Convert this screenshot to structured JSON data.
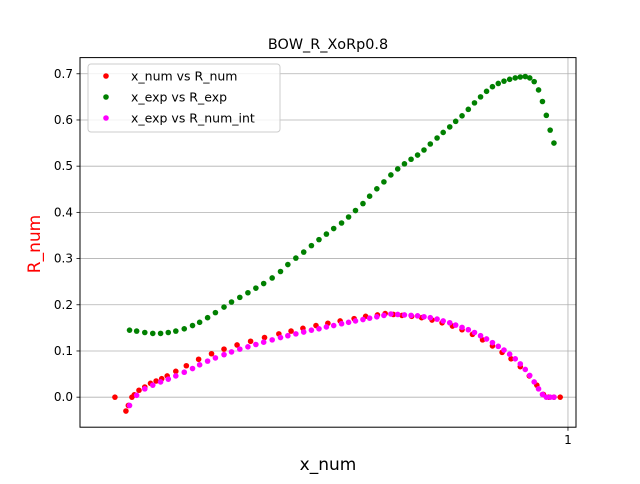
{
  "chart_data": {
    "type": "scatter",
    "title": "BOW_R_XoRp0.8",
    "xlabel": "x_num",
    "ylabel": "R_num",
    "x_scale": "log",
    "xlim": [
      0.3,
      1.02
    ],
    "ylim": [
      -0.065,
      0.735
    ],
    "x_ticks": [
      1
    ],
    "x_tick_labels": [
      "1"
    ],
    "y_ticks": [
      0.0,
      0.1,
      0.2,
      0.3,
      0.4,
      0.5,
      0.6,
      0.7
    ],
    "y_tick_labels": [
      "0.0",
      "0.1",
      "0.2",
      "0.3",
      "0.4",
      "0.5",
      "0.6",
      "0.7"
    ],
    "grid": "horizontal",
    "legend_position": "upper left",
    "colors": {
      "x_num vs R_num": "#ff0000",
      "x_exp vs R_exp": "#008000",
      "x_exp vs R_num_int": "#ff00ff",
      "ylabel": "#ff0000",
      "grid": "#b0b0b0"
    },
    "series": [
      {
        "name": "x_num vs R_num",
        "color": "#ff0000",
        "points": [
          [
            0.327,
            0.0
          ],
          [
            0.336,
            -0.03
          ],
          [
            0.338,
            -0.018
          ],
          [
            0.341,
            0.0
          ],
          [
            0.343,
            0.005
          ],
          [
            0.347,
            0.015
          ],
          [
            0.352,
            0.022
          ],
          [
            0.357,
            0.03
          ],
          [
            0.362,
            0.035
          ],
          [
            0.367,
            0.04
          ],
          [
            0.372,
            0.046
          ],
          [
            0.38,
            0.056
          ],
          [
            0.39,
            0.068
          ],
          [
            0.402,
            0.082
          ],
          [
            0.415,
            0.094
          ],
          [
            0.428,
            0.104
          ],
          [
            0.442,
            0.113
          ],
          [
            0.457,
            0.121
          ],
          [
            0.473,
            0.129
          ],
          [
            0.49,
            0.137
          ],
          [
            0.505,
            0.143
          ],
          [
            0.52,
            0.149
          ],
          [
            0.537,
            0.155
          ],
          [
            0.553,
            0.16
          ],
          [
            0.57,
            0.165
          ],
          [
            0.59,
            0.17
          ],
          [
            0.607,
            0.175
          ],
          [
            0.625,
            0.178
          ],
          [
            0.637,
            0.181
          ],
          [
            0.65,
            0.179
          ],
          [
            0.664,
            0.177
          ],
          [
            0.68,
            0.175
          ],
          [
            0.697,
            0.172
          ],
          [
            0.715,
            0.167
          ],
          [
            0.733,
            0.161
          ],
          [
            0.752,
            0.154
          ],
          [
            0.77,
            0.146
          ],
          [
            0.79,
            0.136
          ],
          [
            0.81,
            0.124
          ],
          [
            0.83,
            0.111
          ],
          [
            0.85,
            0.097
          ],
          [
            0.869,
            0.083
          ],
          [
            0.889,
            0.066
          ],
          [
            0.909,
            0.046
          ],
          [
            0.926,
            0.026
          ],
          [
            0.941,
            0.006
          ],
          [
            0.954,
            0.0
          ],
          [
            0.966,
            0.0
          ],
          [
            0.981,
            0.0
          ]
        ]
      },
      {
        "name": "x_exp vs R_exp",
        "color": "#008000",
        "points": [
          [
            0.339,
            0.145
          ],
          [
            0.345,
            0.143
          ],
          [
            0.352,
            0.14
          ],
          [
            0.359,
            0.138
          ],
          [
            0.366,
            0.138
          ],
          [
            0.373,
            0.14
          ],
          [
            0.38,
            0.143
          ],
          [
            0.388,
            0.148
          ],
          [
            0.396,
            0.155
          ],
          [
            0.403,
            0.162
          ],
          [
            0.411,
            0.172
          ],
          [
            0.419,
            0.183
          ],
          [
            0.428,
            0.195
          ],
          [
            0.436,
            0.206
          ],
          [
            0.445,
            0.216
          ],
          [
            0.454,
            0.226
          ],
          [
            0.463,
            0.236
          ],
          [
            0.472,
            0.246
          ],
          [
            0.482,
            0.258
          ],
          [
            0.492,
            0.272
          ],
          [
            0.501,
            0.287
          ],
          [
            0.511,
            0.301
          ],
          [
            0.521,
            0.314
          ],
          [
            0.531,
            0.328
          ],
          [
            0.541,
            0.341
          ],
          [
            0.551,
            0.353
          ],
          [
            0.561,
            0.365
          ],
          [
            0.572,
            0.377
          ],
          [
            0.582,
            0.39
          ],
          [
            0.592,
            0.404
          ],
          [
            0.603,
            0.419
          ],
          [
            0.613,
            0.435
          ],
          [
            0.624,
            0.451
          ],
          [
            0.635,
            0.466
          ],
          [
            0.646,
            0.481
          ],
          [
            0.657,
            0.494
          ],
          [
            0.668,
            0.505
          ],
          [
            0.679,
            0.515
          ],
          [
            0.69,
            0.524
          ],
          [
            0.701,
            0.535
          ],
          [
            0.712,
            0.548
          ],
          [
            0.724,
            0.561
          ],
          [
            0.735,
            0.573
          ],
          [
            0.747,
            0.585
          ],
          [
            0.758,
            0.597
          ],
          [
            0.77,
            0.609
          ],
          [
            0.782,
            0.623
          ],
          [
            0.794,
            0.637
          ],
          [
            0.806,
            0.65
          ],
          [
            0.818,
            0.662
          ],
          [
            0.83,
            0.672
          ],
          [
            0.842,
            0.679
          ],
          [
            0.854,
            0.684
          ],
          [
            0.866,
            0.688
          ],
          [
            0.878,
            0.691
          ],
          [
            0.889,
            0.693
          ],
          [
            0.9,
            0.694
          ],
          [
            0.91,
            0.691
          ],
          [
            0.92,
            0.683
          ],
          [
            0.93,
            0.665
          ],
          [
            0.939,
            0.64
          ],
          [
            0.948,
            0.61
          ],
          [
            0.957,
            0.578
          ],
          [
            0.966,
            0.55
          ]
        ]
      },
      {
        "name": "x_exp vs R_num_int",
        "color": "#ff00ff",
        "points": [
          [
            0.339,
            -0.018
          ],
          [
            0.345,
            0.004
          ],
          [
            0.352,
            0.018
          ],
          [
            0.359,
            0.026
          ],
          [
            0.366,
            0.033
          ],
          [
            0.373,
            0.039
          ],
          [
            0.38,
            0.046
          ],
          [
            0.388,
            0.054
          ],
          [
            0.396,
            0.062
          ],
          [
            0.403,
            0.07
          ],
          [
            0.411,
            0.078
          ],
          [
            0.419,
            0.085
          ],
          [
            0.428,
            0.092
          ],
          [
            0.436,
            0.098
          ],
          [
            0.445,
            0.104
          ],
          [
            0.454,
            0.109
          ],
          [
            0.463,
            0.114
          ],
          [
            0.472,
            0.119
          ],
          [
            0.482,
            0.124
          ],
          [
            0.492,
            0.129
          ],
          [
            0.501,
            0.133
          ],
          [
            0.511,
            0.137
          ],
          [
            0.521,
            0.141
          ],
          [
            0.531,
            0.145
          ],
          [
            0.541,
            0.148
          ],
          [
            0.551,
            0.152
          ],
          [
            0.561,
            0.155
          ],
          [
            0.572,
            0.159
          ],
          [
            0.582,
            0.162
          ],
          [
            0.592,
            0.165
          ],
          [
            0.603,
            0.168
          ],
          [
            0.613,
            0.171
          ],
          [
            0.624,
            0.174
          ],
          [
            0.635,
            0.177
          ],
          [
            0.646,
            0.18
          ],
          [
            0.657,
            0.179
          ],
          [
            0.668,
            0.178
          ],
          [
            0.679,
            0.177
          ],
          [
            0.69,
            0.176
          ],
          [
            0.701,
            0.174
          ],
          [
            0.712,
            0.172
          ],
          [
            0.724,
            0.169
          ],
          [
            0.735,
            0.165
          ],
          [
            0.747,
            0.161
          ],
          [
            0.758,
            0.156
          ],
          [
            0.77,
            0.151
          ],
          [
            0.782,
            0.146
          ],
          [
            0.794,
            0.14
          ],
          [
            0.806,
            0.133
          ],
          [
            0.818,
            0.126
          ],
          [
            0.83,
            0.118
          ],
          [
            0.842,
            0.11
          ],
          [
            0.854,
            0.102
          ],
          [
            0.866,
            0.093
          ],
          [
            0.878,
            0.083
          ],
          [
            0.889,
            0.072
          ],
          [
            0.9,
            0.06
          ],
          [
            0.91,
            0.047
          ],
          [
            0.92,
            0.033
          ],
          [
            0.93,
            0.018
          ],
          [
            0.939,
            0.006
          ],
          [
            0.948,
            0.0
          ],
          [
            0.957,
            0.0
          ],
          [
            0.966,
            0.0
          ]
        ]
      }
    ]
  }
}
